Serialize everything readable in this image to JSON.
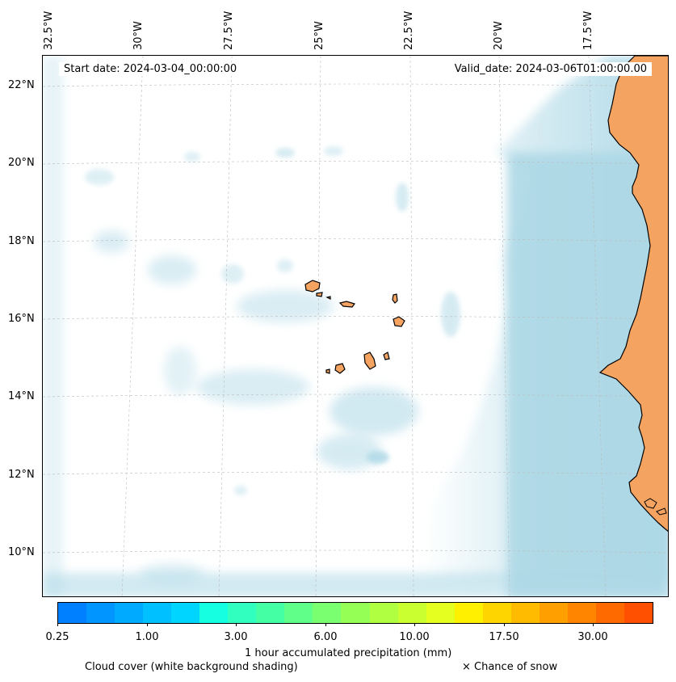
{
  "longitude_labels": [
    "32.5°W",
    "30°W",
    "27.5°W",
    "25°W",
    "22.5°W",
    "20°W",
    "17.5°W"
  ],
  "latitude_labels": [
    "22°N",
    "20°N",
    "18°N",
    "16°N",
    "14°N",
    "12°N",
    "10°N"
  ],
  "map": {
    "start_date": "Start date: 2024-03-04_00:00:00",
    "valid_date": "Valid_date: 2024-03-06T01:00:00.00",
    "land_color": "#f4a460",
    "cloud_color": "#add8e6",
    "ocean_color": "#ffffff"
  },
  "colorbar": {
    "colors": [
      "#0080ff",
      "#0095ff",
      "#00aaff",
      "#00c0ff",
      "#00d5ff",
      "#15ffe0",
      "#30ffc0",
      "#45ffa5",
      "#60ff8a",
      "#7aff70",
      "#95ff55",
      "#b0ff40",
      "#caff30",
      "#e5ff20",
      "#fff000",
      "#ffd500",
      "#ffbb00",
      "#ffa000",
      "#ff8500",
      "#ff6a00",
      "#ff4f00"
    ],
    "tick_labels": [
      "0.25",
      "1.00",
      "3.00",
      "6.00",
      "10.00",
      "17.50",
      "30.00"
    ],
    "label": "1 hour accumulated precipitation (mm)"
  },
  "legend": {
    "cloud_cover": "Cloud cover (white background shading)",
    "snow": "× Chance of snow"
  }
}
